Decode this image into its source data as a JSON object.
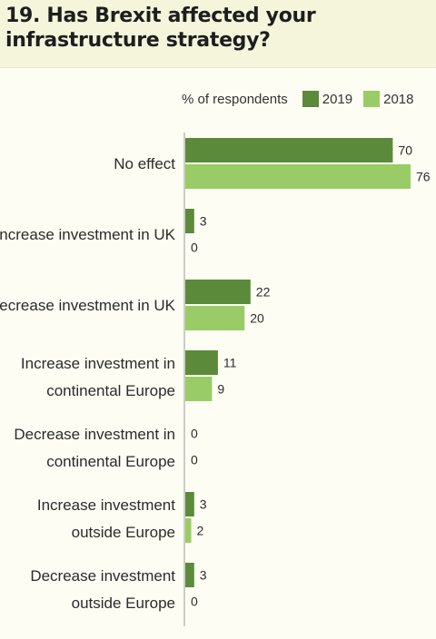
{
  "title": "19. Has Brexit affected your infrastructure strategy?",
  "legend": {
    "prefix": "% of respondents",
    "items": [
      {
        "label": "2019",
        "color": "#5b8a3a"
      },
      {
        "label": "2018",
        "color": "#99cc66"
      }
    ]
  },
  "chart_data": {
    "type": "bar",
    "orientation": "horizontal",
    "title": "19. Has Brexit affected your infrastructure strategy?",
    "categories": [
      [
        "No effect"
      ],
      [
        "Increase investment in UK"
      ],
      [
        "Decrease investment in UK"
      ],
      [
        "Increase investment in",
        "continental Europe"
      ],
      [
        "Decrease investment in",
        "continental Europe"
      ],
      [
        "Increase investment",
        "outside Europe"
      ],
      [
        "Decrease investment",
        "outside Europe"
      ]
    ],
    "series": [
      {
        "name": "2019",
        "color": "#5b8a3a",
        "values": [
          70,
          3,
          22,
          11,
          0,
          3,
          3
        ]
      },
      {
        "name": "2018",
        "color": "#99cc66",
        "values": [
          76,
          0,
          20,
          9,
          0,
          2,
          0
        ]
      }
    ],
    "unit": "% of respondents",
    "xlim": [
      0,
      76
    ]
  }
}
